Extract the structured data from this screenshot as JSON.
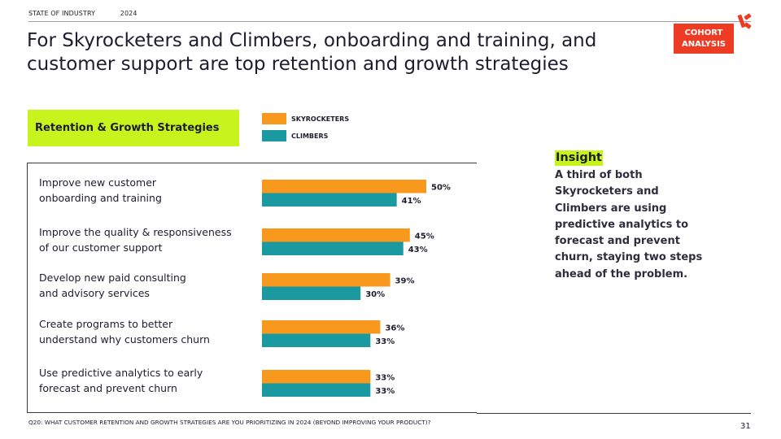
{
  "header": {
    "section": "STATE OF INDUSTRY",
    "year": "2024",
    "badge": "COHORT\nANALYSIS"
  },
  "title": "For Skyrocketers and Climbers, onboarding and training, and customer support are top retention and growth strategies",
  "strategy_box": "Retention & Growth Strategies",
  "colors": {
    "skyrocketers": "#f8991d",
    "climbers": "#1a9aa0",
    "accent": "#c6f41c",
    "badge": "#ee3b24"
  },
  "chart_data": {
    "type": "bar",
    "orientation": "horizontal",
    "categories": [
      "Improve new customer\nonboarding and training",
      "Improve the quality & responsiveness\nof our customer support",
      "Develop new paid consulting\nand advisory services",
      "Create programs to better\nunderstand why customers churn",
      "Use predictive analytics to early\nforecast and prevent churn"
    ],
    "series": [
      {
        "name": "SKYROCKETERS",
        "values": [
          50,
          45,
          39,
          36,
          33
        ]
      },
      {
        "name": "CLIMBERS",
        "values": [
          41,
          43,
          30,
          33,
          33
        ]
      }
    ],
    "value_suffix": "%",
    "legend_position": "top",
    "grid": false
  },
  "insight": {
    "heading": "Insight",
    "body": "A third of both Skyrocketers and Climbers are using predictive analytics to forecast and prevent churn, staying two steps ahead of the problem."
  },
  "footnote": "Q20: WHAT CUSTOMER RETENTION AND GROWTH STRATEGIES ARE YOU PRIORITIZING IN 2024 (BEYOND IMPROVING YOUR PRODUCT)?",
  "page_number": "31"
}
